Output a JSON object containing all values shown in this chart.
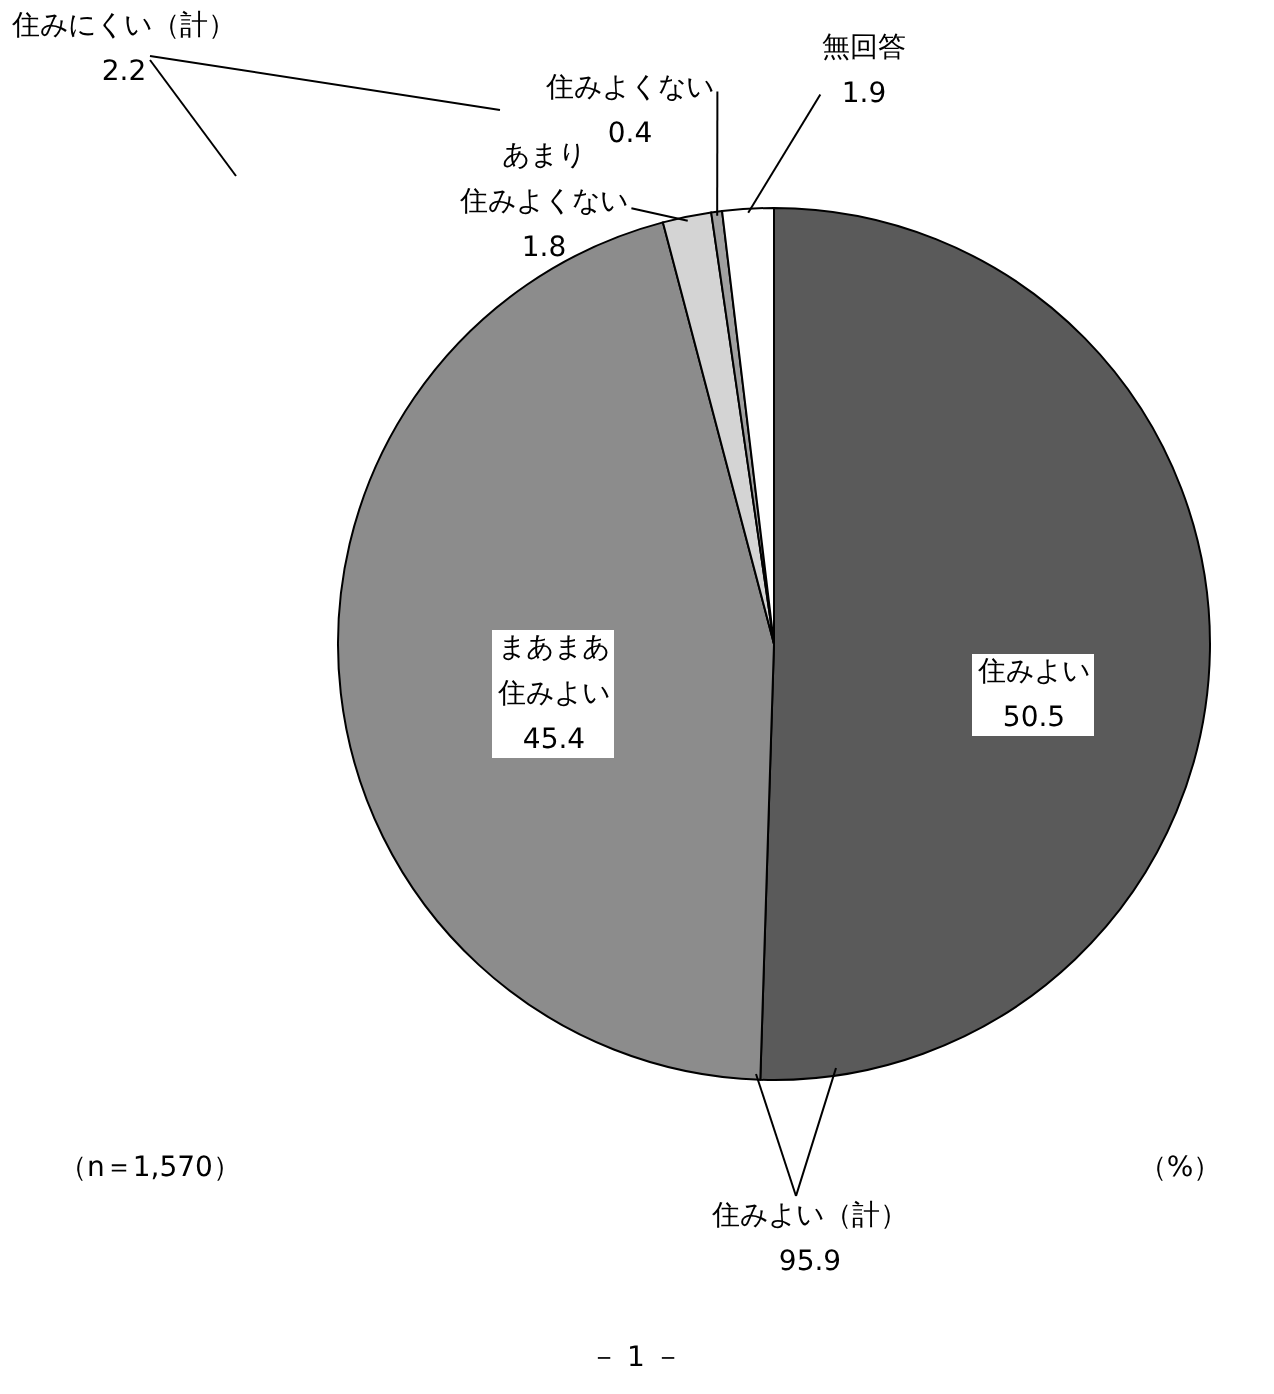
{
  "chart_data": {
    "type": "pie",
    "categories": [
      "住みよい",
      "まあまあ住みよい",
      "あまり住みよくない",
      "住みよくない",
      "無回答"
    ],
    "values": [
      50.5,
      45.4,
      1.8,
      0.4,
      1.9
    ],
    "colors": [
      "#5a5a5a",
      "#8c8c8c",
      "#d4d4d4",
      "#a0a0a0",
      "#ffffff"
    ],
    "data_labels": true,
    "annotations": [
      "住みにくい（計）\n2.2",
      "住みよい（計）\n95.9",
      "（n＝1,570）",
      "（%）",
      "－ 1 －"
    ]
  }
}
